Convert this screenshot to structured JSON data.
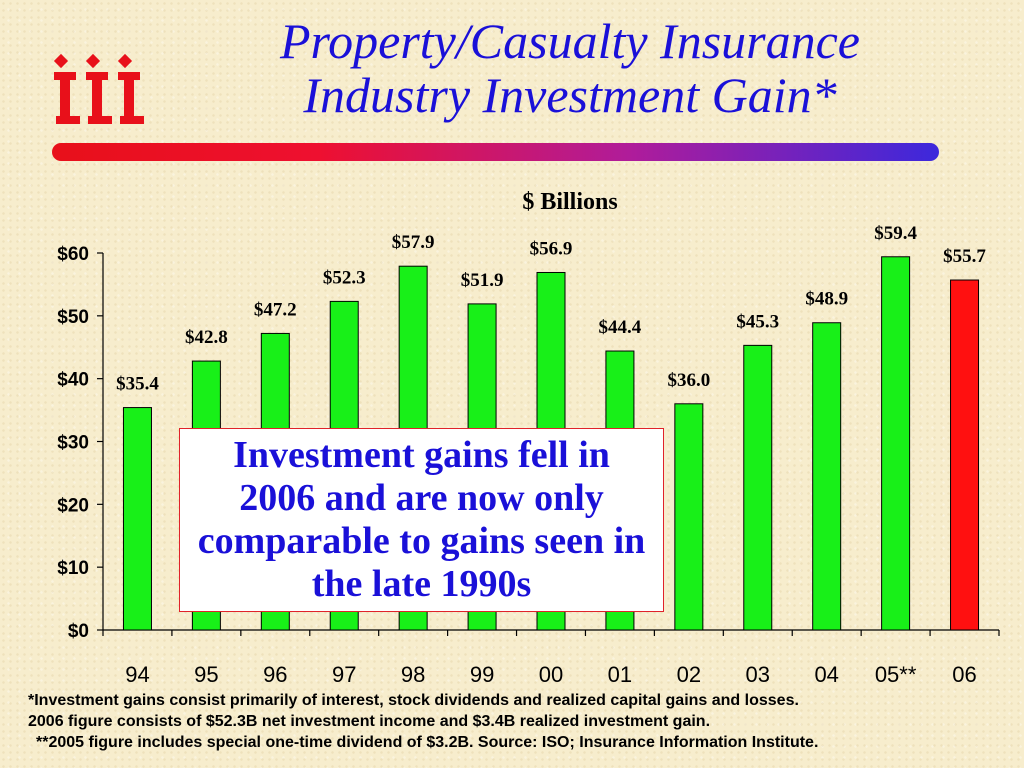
{
  "title": {
    "line1": "Property/Casualty Insurance",
    "line2": "Industry Investment Gain*"
  },
  "logo": {
    "icon": "iii-logo",
    "text": "iii",
    "color": "#e8101a"
  },
  "callout": {
    "text": "Investment gains fell in 2006 and are now only comparable to gains seen in the late 1990s"
  },
  "footnotes": {
    "line1": "*Investment gains consist primarily of interest, stock dividends and realized capital gains and losses.",
    "line2": "2006 figure consists of $52.3B net investment income and $3.4B realized investment gain.",
    "line3": "**2005 figure includes special one-time dividend of $3.2B. Source: ISO; Insurance Information Institute."
  },
  "colors": {
    "title": "#1a10d8",
    "bar": "#18f018",
    "highlight_bar": "#ff1010",
    "rule_start": "#e8101a",
    "rule_end": "#3c28dc"
  },
  "chart_data": {
    "type": "bar",
    "ylabel": "$ Billions",
    "categories": [
      "94",
      "95",
      "96",
      "97",
      "98",
      "99",
      "00",
      "01",
      "02",
      "03",
      "04",
      "05**",
      "06"
    ],
    "values": [
      35.4,
      42.8,
      47.2,
      52.3,
      57.9,
      51.9,
      56.9,
      44.4,
      36.0,
      45.3,
      48.9,
      59.4,
      55.7
    ],
    "data_labels": [
      "$35.4",
      "$42.8",
      "$47.2",
      "$52.3",
      "$57.9",
      "$51.9",
      "$56.9",
      "$44.4",
      "$36.0",
      "$45.3",
      "$48.9",
      "$59.4",
      "$55.7"
    ],
    "highlight": [
      "06"
    ],
    "ylim": [
      0,
      60
    ],
    "yticks": [
      0,
      10,
      20,
      30,
      40,
      50,
      60
    ],
    "ytick_labels": [
      "$0",
      "$10",
      "$20",
      "$30",
      "$40",
      "$50",
      "$60"
    ],
    "grid": false,
    "legend": "none"
  }
}
